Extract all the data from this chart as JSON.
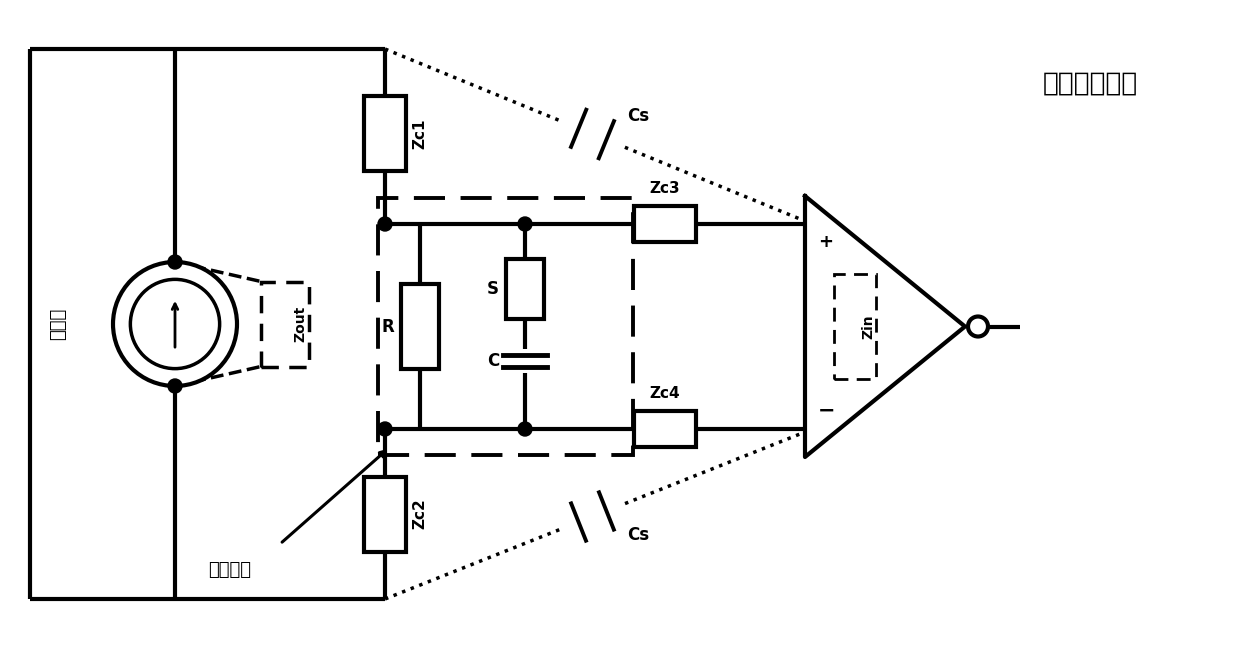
{
  "bg_color": "#ffffff",
  "line_color": "#000000",
  "title_text": "电压测量电路",
  "label_hengliuyuan": "恒流源",
  "label_beidingmubiao": "被测目标",
  "label_Zout": "Zout",
  "label_Zc1": "Zc1",
  "label_Zc2": "Zc2",
  "label_Zc3": "Zc3",
  "label_Zc4": "Zc4",
  "label_Cs_top": "Cs",
  "label_Cs_bot": "Cs",
  "label_R": "R",
  "label_S": "S",
  "label_C": "C",
  "label_Zin": "Zin",
  "label_plus": "+",
  "label_minus": "−",
  "figsize": [
    12.4,
    6.49
  ],
  "dpi": 100
}
